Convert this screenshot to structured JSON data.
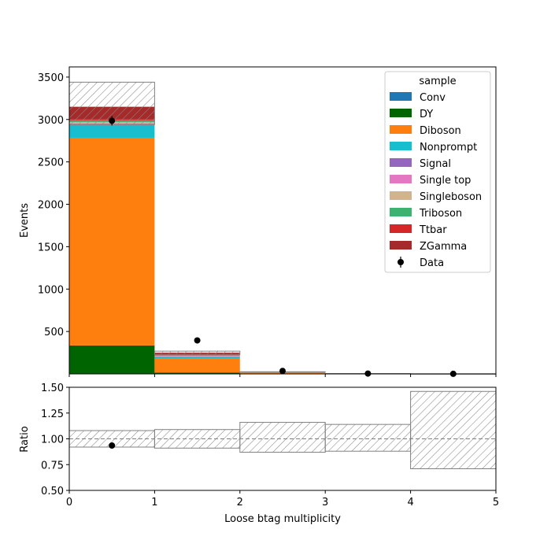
{
  "chart_data": [
    {
      "type": "bar",
      "stacked": true,
      "bin_edges": [
        0,
        1,
        2,
        3,
        4,
        5
      ],
      "xlim": [
        0,
        5
      ],
      "ylim": [
        0,
        3620
      ],
      "ylabel": "Events",
      "y_ticks": [
        500,
        1000,
        1500,
        2000,
        2500,
        3000,
        3500
      ],
      "x_ticks": [
        0,
        1,
        2,
        3,
        4,
        5
      ],
      "legend": {
        "title": "sample",
        "position": "top-right"
      },
      "series": [
        {
          "name": "Conv",
          "color": "#1f77b4",
          "values": [
            5,
            1,
            0,
            0,
            0
          ]
        },
        {
          "name": "DY",
          "color": "#006400",
          "values": [
            330,
            15,
            2,
            0.5,
            0.1
          ]
        },
        {
          "name": "Diboson",
          "color": "#ff7f0e",
          "values": [
            2450,
            170,
            10,
            1,
            0.2
          ]
        },
        {
          "name": "Nonprompt",
          "color": "#17becf",
          "values": [
            150,
            15,
            2,
            0.3,
            0.1
          ]
        },
        {
          "name": "Signal",
          "color": "#9467bd",
          "values": [
            15,
            5,
            1,
            0.2,
            0.05
          ]
        },
        {
          "name": "Single top",
          "color": "#e377c2",
          "values": [
            5,
            5,
            1,
            0.2,
            0.05
          ]
        },
        {
          "name": "Singleboson",
          "color": "#d2b48c",
          "values": [
            15,
            5,
            1,
            0.2,
            0.05
          ]
        },
        {
          "name": "Triboson",
          "color": "#3cb371",
          "values": [
            20,
            2,
            0.5,
            0.1,
            0.02
          ]
        },
        {
          "name": "Ttbar",
          "color": "#d62728",
          "values": [
            10,
            12,
            4,
            1,
            0.2
          ]
        },
        {
          "name": "ZGamma",
          "color": "#a52a2a",
          "values": [
            150,
            20,
            2,
            0.5,
            0.1
          ]
        }
      ],
      "uncertainty_band": {
        "low": [
          2940,
          230,
          20,
          3.5,
          0.6
        ],
        "high": [
          3440,
          268,
          25,
          4.3,
          1.3
        ]
      },
      "data": {
        "name": "Data",
        "x": [
          0.5,
          1.5,
          2.5,
          3.5,
          4.5
        ],
        "y": [
          2985,
          395,
          35,
          4,
          1
        ],
        "yerr": [
          55,
          20,
          6,
          2,
          1
        ]
      }
    },
    {
      "type": "bar",
      "ylabel": "Ratio",
      "xlabel": "Loose btag multiplicity",
      "bin_edges": [
        0,
        1,
        2,
        3,
        4,
        5
      ],
      "xlim": [
        0,
        5
      ],
      "ylim": [
        0.5,
        1.5
      ],
      "y_ticks": [
        "0.50",
        "0.75",
        "1.00",
        "1.25",
        "1.50"
      ],
      "x_ticks": [
        "0",
        "1",
        "2",
        "3",
        "4",
        "5"
      ],
      "reference_line": 1.0,
      "uncertainty_band": {
        "low": [
          0.92,
          0.91,
          0.87,
          0.88,
          0.71
        ],
        "high": [
          1.08,
          1.09,
          1.16,
          1.14,
          1.46
        ]
      },
      "data": {
        "x": [
          0.5
        ],
        "y": [
          0.935
        ]
      }
    }
  ]
}
